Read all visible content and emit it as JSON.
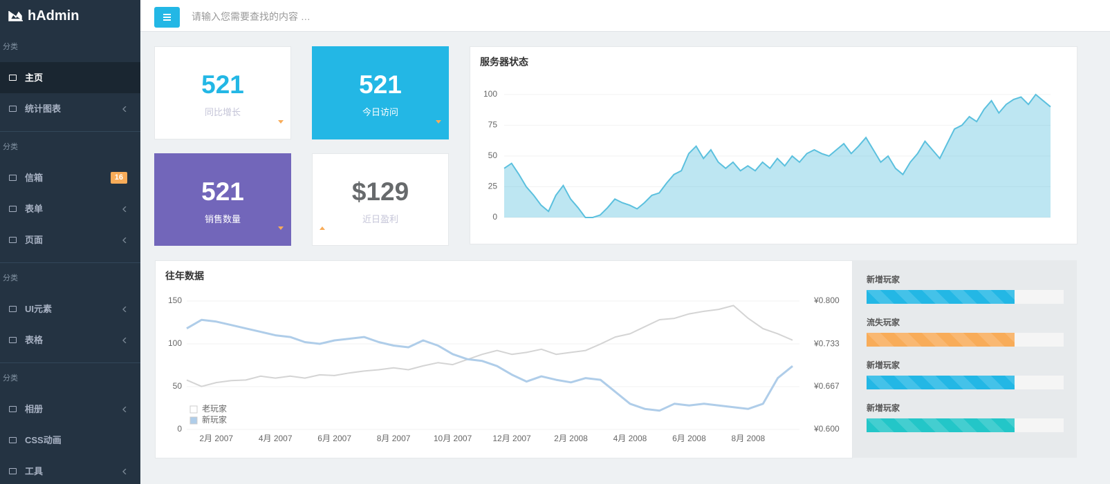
{
  "sidebar": {
    "logo": "hAdmin",
    "groups": [
      {
        "label": "分类",
        "items": [
          {
            "text": "主页",
            "active": true
          },
          {
            "text": "统计图表",
            "submenu": true
          }
        ]
      },
      {
        "label": "分类",
        "items": [
          {
            "text": "信箱",
            "badge": "16"
          },
          {
            "text": "表单",
            "submenu": true
          },
          {
            "text": "页面",
            "submenu": true
          }
        ]
      },
      {
        "label": "分类",
        "items": [
          {
            "text": "UI元素",
            "submenu": true
          },
          {
            "text": "表格",
            "submenu": true
          }
        ]
      },
      {
        "label": "分类",
        "items": [
          {
            "text": "相册",
            "submenu": true
          },
          {
            "text": "CSS动画"
          },
          {
            "text": "工具",
            "submenu": true
          }
        ]
      }
    ]
  },
  "header": {
    "search_placeholder": "请输入您需要查找的内容 …"
  },
  "stats": [
    {
      "value": "521",
      "label": "同比增长"
    },
    {
      "value": "521",
      "label": "今日访问"
    },
    {
      "value": "521",
      "label": "销售数量"
    },
    {
      "value": "$129",
      "label": "近日盈利"
    }
  ],
  "chart_data": [
    {
      "type": "area",
      "title": "服务器状态",
      "color": "#5bc0de",
      "values": [
        40,
        44,
        35,
        25,
        18,
        10,
        5,
        18,
        26,
        15,
        8,
        0,
        0,
        2,
        8,
        15,
        12,
        10,
        7,
        12,
        18,
        20,
        28,
        35,
        38,
        52,
        58,
        48,
        55,
        45,
        40,
        45,
        38,
        42,
        38,
        45,
        40,
        48,
        42,
        50,
        45,
        52,
        55,
        52,
        50,
        55,
        60,
        52,
        58,
        65,
        55,
        45,
        50,
        40,
        35,
        45,
        52,
        62,
        55,
        48,
        60,
        72,
        75,
        82,
        78,
        88,
        95,
        85,
        92,
        96,
        98,
        92,
        100,
        95,
        90
      ],
      "ylim": [
        0,
        105
      ],
      "yticks": [
        0,
        25,
        50,
        75,
        100
      ],
      "grid": true
    },
    {
      "type": "line",
      "title": "往年数据",
      "categories": [
        null,
        null,
        "2月 2007",
        null,
        null,
        null,
        "4月 2007",
        null,
        null,
        null,
        "6月 2007",
        null,
        null,
        null,
        "8月 2007",
        null,
        null,
        null,
        "10月 2007",
        null,
        null,
        null,
        "12月 2007",
        null,
        null,
        null,
        "2月 2008",
        null,
        null,
        null,
        "4月 2008",
        null,
        null,
        null,
        "6月 2008",
        null,
        null,
        null,
        "8月 2008",
        null,
        null,
        null
      ],
      "series": [
        {
          "name": "老玩家",
          "color": "#d4d4d4",
          "axis": "y2",
          "values": [
            0.677,
            0.667,
            0.673,
            0.676,
            0.677,
            0.683,
            0.68,
            0.683,
            0.68,
            0.685,
            0.684,
            0.688,
            0.691,
            0.693,
            0.696,
            0.693,
            0.699,
            0.704,
            0.701,
            0.709,
            0.717,
            0.723,
            0.717,
            0.72,
            0.725,
            0.717,
            0.72,
            0.723,
            0.733,
            0.744,
            0.749,
            0.76,
            0.771,
            0.773,
            0.78,
            0.784,
            0.787,
            0.793,
            0.773,
            0.757,
            0.749,
            0.739
          ]
        },
        {
          "name": "新玩家",
          "color": "#afcde9",
          "axis": "y",
          "values": [
            118,
            128,
            126,
            122,
            118,
            114,
            110,
            108,
            102,
            100,
            104,
            106,
            108,
            102,
            98,
            96,
            104,
            98,
            88,
            82,
            80,
            74,
            64,
            56,
            62,
            58,
            55,
            60,
            58,
            44,
            30,
            24,
            22,
            30,
            28,
            30,
            28,
            26,
            24,
            30,
            60,
            74
          ]
        }
      ],
      "ylim": [
        0,
        150
      ],
      "yticks": [
        0,
        50,
        100,
        150
      ],
      "y2lim": [
        0.6,
        0.8
      ],
      "y2ticks": [
        {
          "value": 0.6,
          "label": "¥0.600"
        },
        {
          "value": 0.667,
          "label": "¥0.667"
        },
        {
          "value": 0.733,
          "label": "¥0.733"
        },
        {
          "value": 0.8,
          "label": "¥0.800"
        }
      ],
      "grid": true,
      "legend": "lower left"
    }
  ],
  "progress": {
    "max": 100,
    "items": [
      {
        "label": "新增玩家",
        "value": 75,
        "color": "#23b7e5"
      },
      {
        "label": "流失玩家",
        "value": 75,
        "color": "#f8ac59"
      },
      {
        "label": "新增玩家",
        "value": 75,
        "color": "#23b7e5"
      },
      {
        "label": "新增玩家",
        "value": 75,
        "color": "#23c6c8"
      }
    ]
  }
}
